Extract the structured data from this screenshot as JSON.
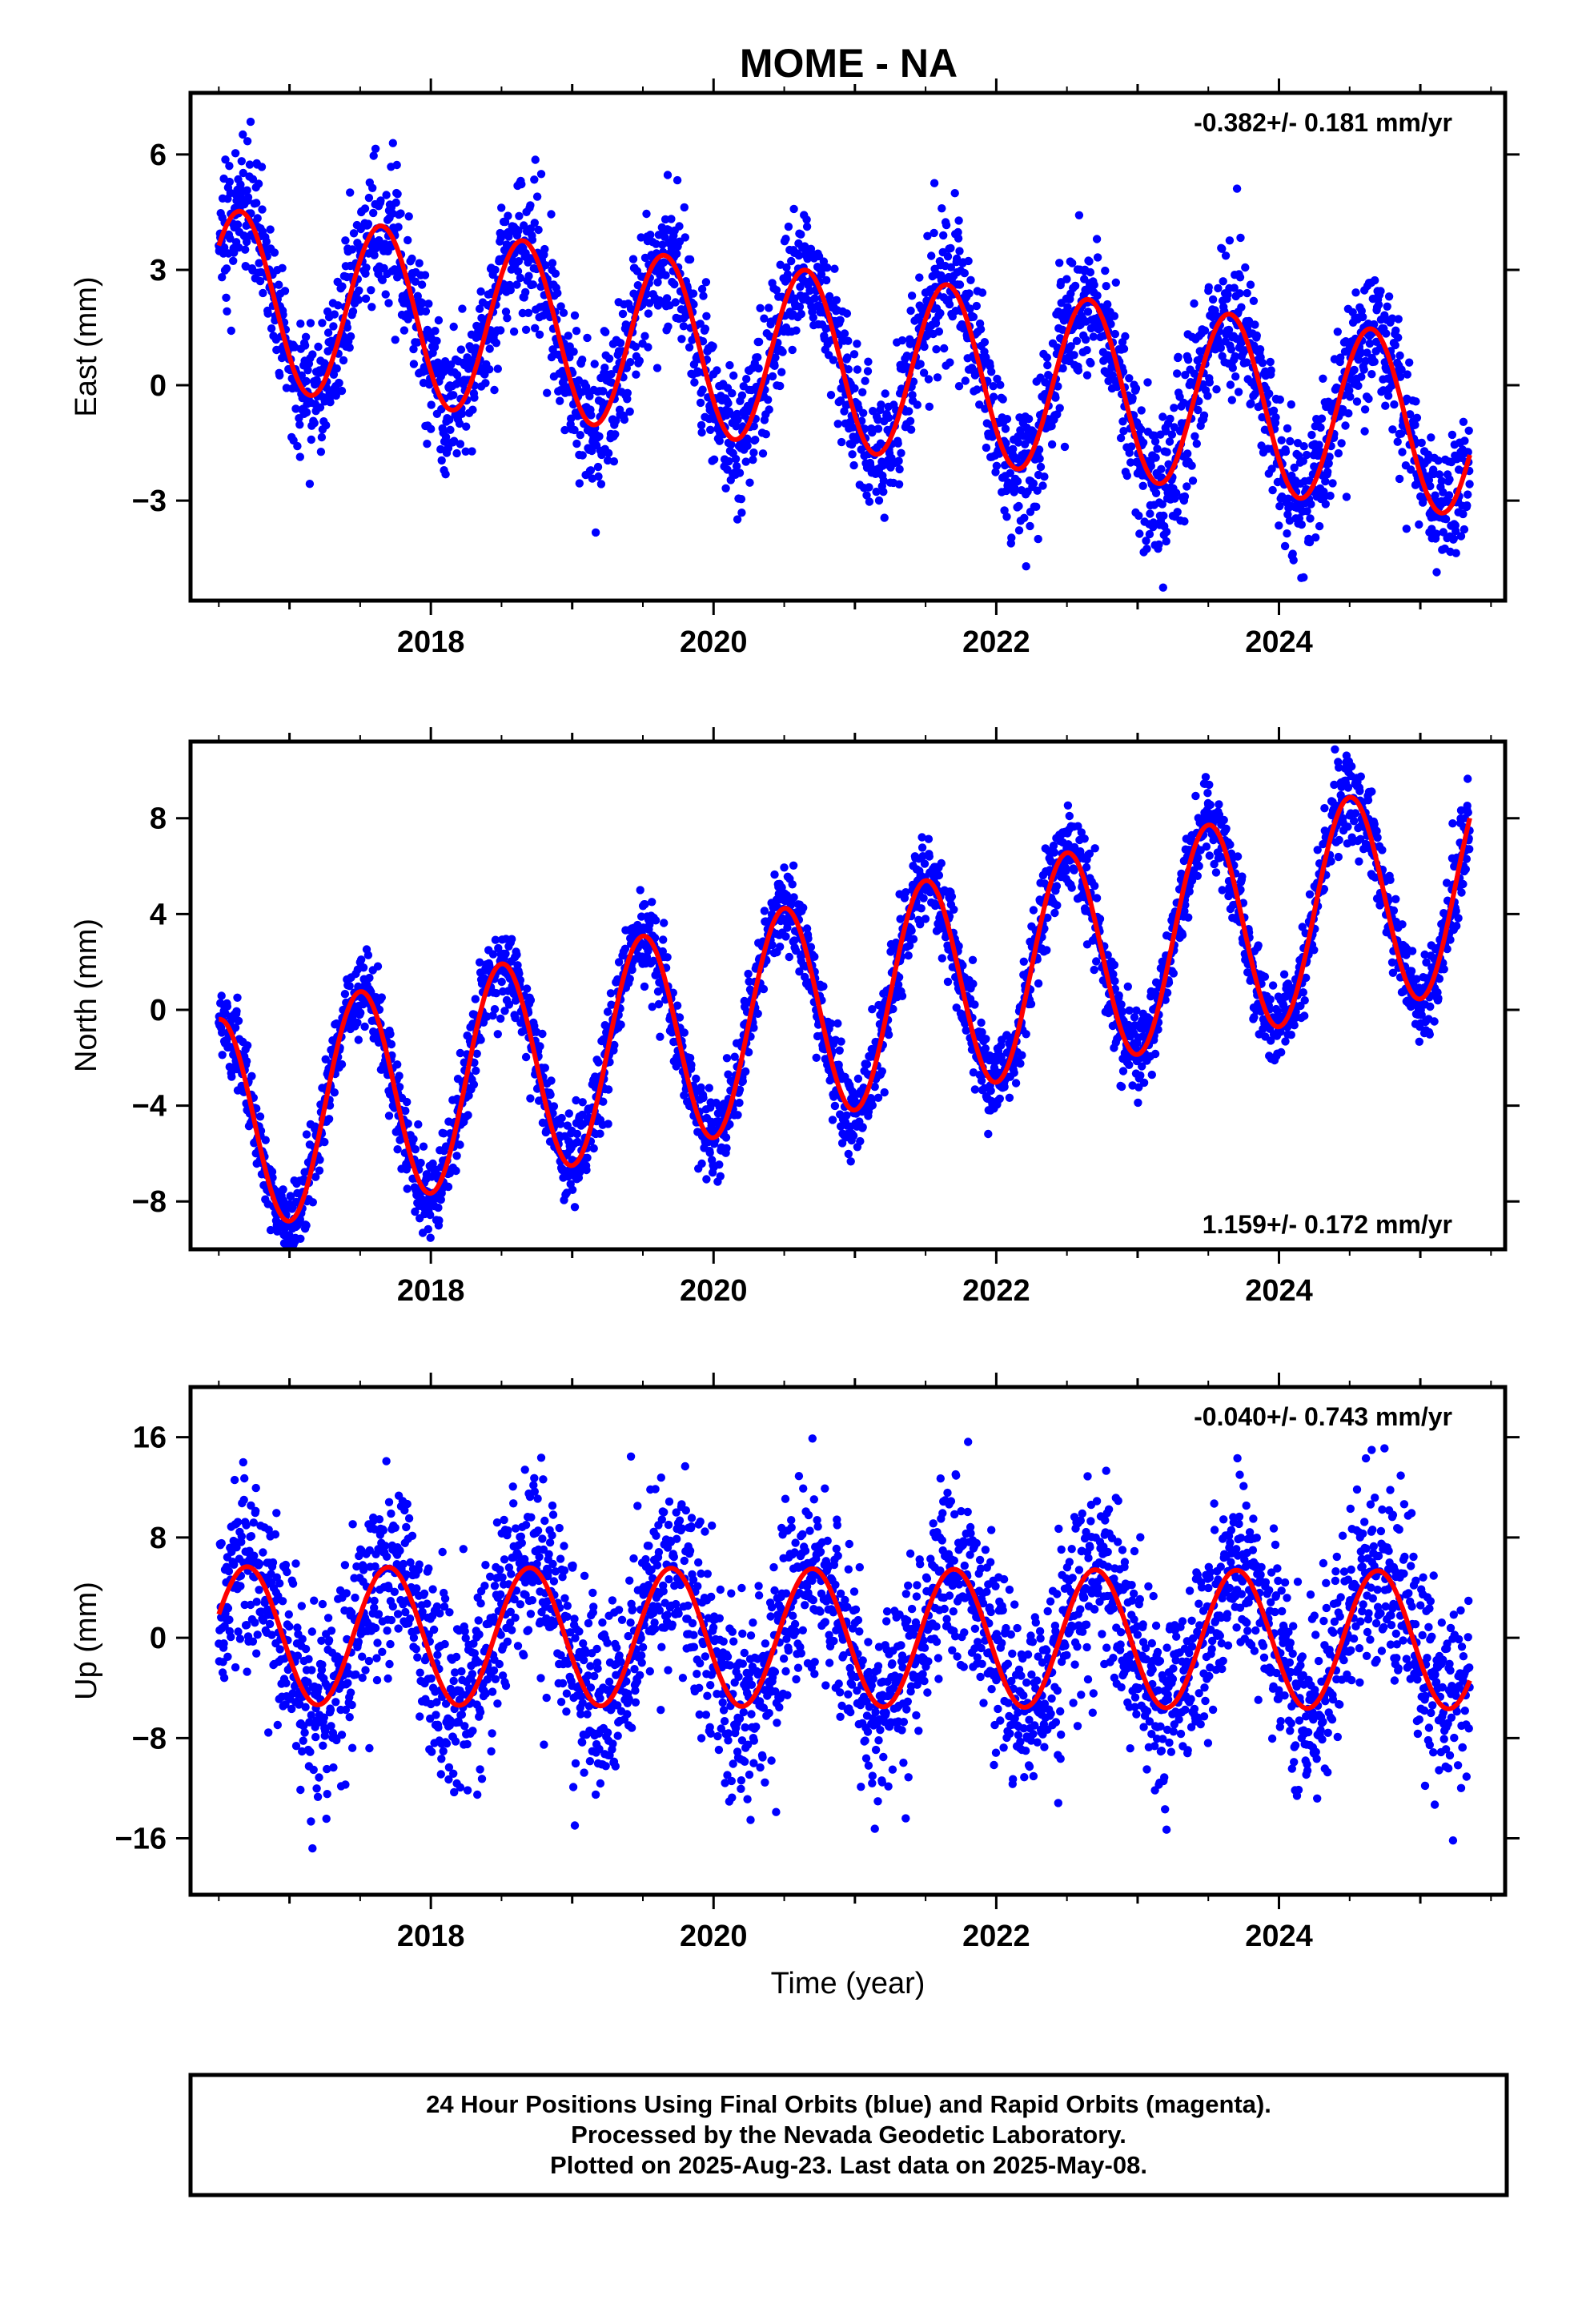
{
  "title": "MOME - NA",
  "colors": {
    "final_orbits": "#0000ff",
    "model_fit": "#ff0000",
    "frame": "#000000"
  },
  "footer": {
    "line1": "24 Hour Positions Using Final Orbits (blue) and Rapid Orbits (magenta).",
    "line2": "Processed by the Nevada Geodetic Laboratory.",
    "line3": "Plotted on 2025-Aug-23. Last data on 2025-May-08."
  },
  "chart_data": [
    {
      "type": "scatter",
      "panel": "east",
      "ylabel": "East (mm)",
      "xlabel": "",
      "rate_label": "-0.382+/- 0.181 mm/yr",
      "rate_position": "top-right",
      "xlim": [
        2016.3,
        2025.6
      ],
      "ylim": [
        -5.6,
        7.6
      ],
      "x_ticks": [
        2018,
        2020,
        2022,
        2024
      ],
      "x_tick_labels": [
        "2018",
        "2020",
        "2022",
        "2024"
      ],
      "y_ticks": [
        -3,
        0,
        3,
        6
      ],
      "y_tick_labels": [
        "−3",
        "0",
        "3",
        "6"
      ],
      "data_start": 2016.5,
      "data_end": 2025.35,
      "series": [
        {
          "kind": "points",
          "model": {
            "offset": 0.6,
            "rate": -0.382,
            "ref_year": 2020.9,
            "amplitude": 2.3,
            "peak_phase": 0.65,
            "noise": 0.9
          }
        },
        {
          "kind": "line",
          "model": {
            "offset": 0.6,
            "rate": -0.382,
            "ref_year": 2020.9,
            "amplitude": 2.3,
            "peak_phase": 0.65
          }
        }
      ]
    },
    {
      "type": "scatter",
      "panel": "north",
      "ylabel": "North (mm)",
      "xlabel": "",
      "rate_label": "1.159+/- 0.172 mm/yr",
      "rate_position": "bottom-right",
      "xlim": [
        2016.3,
        2025.6
      ],
      "ylim": [
        -10.0,
        11.2
      ],
      "x_ticks": [
        2018,
        2020,
        2022,
        2024
      ],
      "x_tick_labels": [
        "2018",
        "2020",
        "2022",
        "2024"
      ],
      "y_ticks": [
        -8,
        -4,
        0,
        4,
        8
      ],
      "y_tick_labels": [
        "−8",
        "−4",
        "0",
        "4",
        "8"
      ],
      "data_start": 2016.5,
      "data_end": 2025.35,
      "series": [
        {
          "kind": "points",
          "model": {
            "offset": 0.2,
            "rate": 1.159,
            "ref_year": 2020.9,
            "amplitude": 4.5,
            "peak_phase": 0.5,
            "noise": 0.9
          }
        },
        {
          "kind": "line",
          "model": {
            "offset": 0.2,
            "rate": 1.159,
            "ref_year": 2020.9,
            "amplitude": 4.5,
            "peak_phase": 0.5
          }
        }
      ]
    },
    {
      "type": "scatter",
      "panel": "up",
      "ylabel": "Up (mm)",
      "xlabel": "Time (year)",
      "rate_label": "-0.040+/- 0.743 mm/yr",
      "rate_position": "top-right",
      "xlim": [
        2016.3,
        2025.6
      ],
      "ylim": [
        -20.5,
        20.0
      ],
      "x_ticks": [
        2018,
        2020,
        2022,
        2024
      ],
      "x_tick_labels": [
        "2018",
        "2020",
        "2022",
        "2024"
      ],
      "y_ticks": [
        -16,
        -8,
        0,
        8,
        16
      ],
      "y_tick_labels": [
        "−16",
        "−8",
        "0",
        "8",
        "16"
      ],
      "data_start": 2016.5,
      "data_end": 2025.35,
      "series": [
        {
          "kind": "points",
          "model": {
            "offset": 0.0,
            "rate": -0.04,
            "ref_year": 2020.9,
            "amplitude": 5.5,
            "peak_phase": 0.7,
            "noise": 3.8
          }
        },
        {
          "kind": "line",
          "model": {
            "offset": 0.0,
            "rate": -0.04,
            "ref_year": 2020.9,
            "amplitude": 5.5,
            "peak_phase": 0.7
          }
        }
      ]
    }
  ]
}
